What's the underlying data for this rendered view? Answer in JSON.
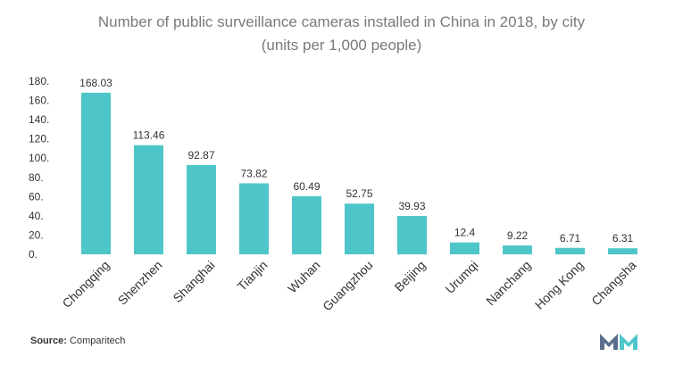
{
  "title": "Number of public surveillance cameras installed in China in 2018, by city",
  "subtitle": "(units per 1,000 people)",
  "source_label": "Source:",
  "source_name": "Comparitech",
  "colors": {
    "bar": "#4ec6c9",
    "axis_text": "#333333",
    "title": "#7a7a7a"
  },
  "chart_data": {
    "type": "bar",
    "title": "Number of public surveillance cameras installed in China in 2018, by city",
    "subtitle": "(units per 1,000 people)",
    "categories": [
      "Chongqing",
      "Shenzhen",
      "Shanghai",
      "Tianjin",
      "Wuhan",
      "Guangzhou",
      "Beijing",
      "Urumqi",
      "Nanchang",
      "Hong Kong",
      "Changsha"
    ],
    "values": [
      168.03,
      113.46,
      92.87,
      73.82,
      60.49,
      52.75,
      39.93,
      12.4,
      9.22,
      6.71,
      6.31
    ],
    "value_labels": [
      "168.03",
      "113.46",
      "92.87",
      "73.82",
      "60.49",
      "52.75",
      "39.93",
      "12.4",
      "9.22",
      "6.71",
      "6.31"
    ],
    "ylim": [
      0,
      180
    ],
    "yticks": [
      "0.",
      "20.",
      "40.",
      "60.",
      "80.",
      "100.",
      "120.",
      "140.",
      "160.",
      "180."
    ],
    "grid": false,
    "legend": "none"
  }
}
